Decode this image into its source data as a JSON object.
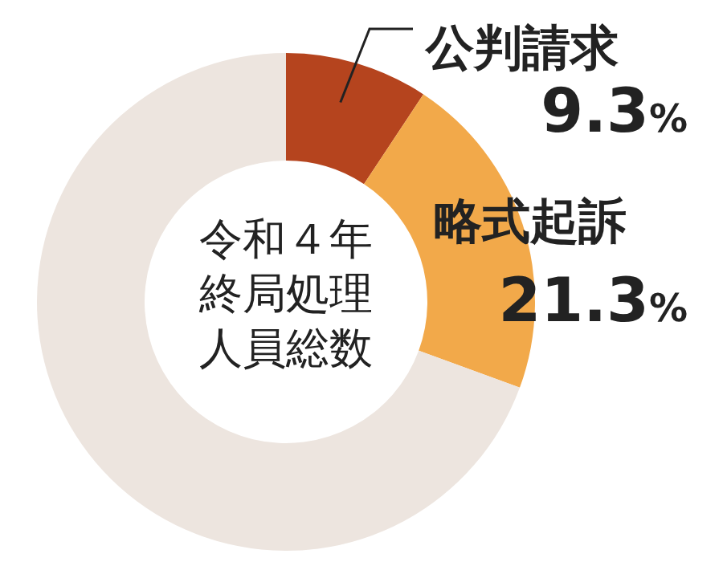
{
  "chart_data": {
    "type": "donut",
    "annotations": [
      "令和４年",
      "終局処理",
      "人員総数"
    ],
    "categories": [
      "公判請求",
      "略式起訴",
      null
    ],
    "values": [
      9.3,
      21.3,
      69.4
    ],
    "colors": [
      "#b5441e",
      "#f2a94a",
      "#ede5df"
    ],
    "value_labels": [
      "9.3%",
      "21.3%",
      null
    ]
  }
}
